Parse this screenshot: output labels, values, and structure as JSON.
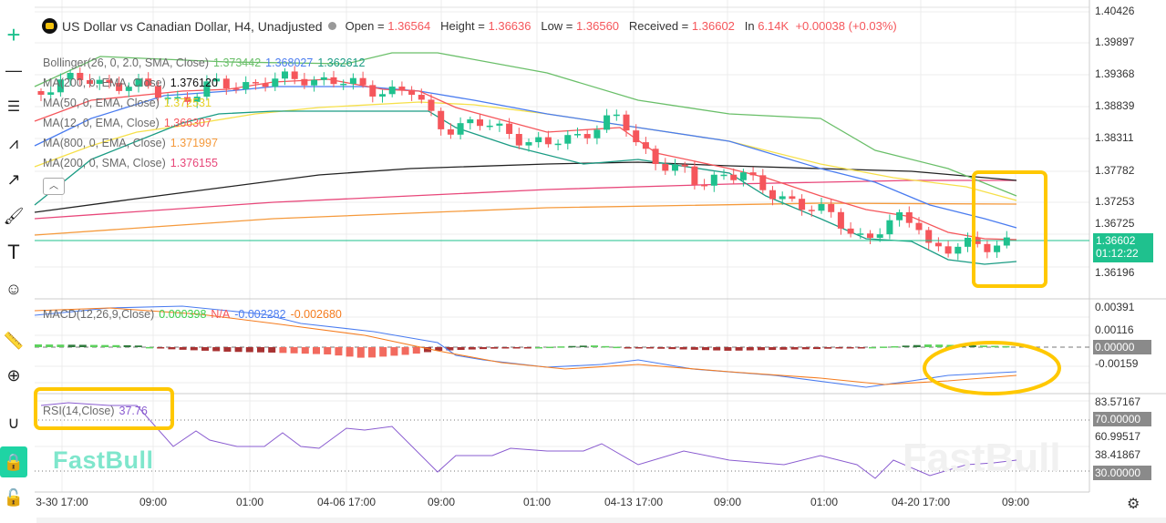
{
  "header": {
    "title": "US Dollar vs Canadian Dollar, H4, Unadjusted",
    "open_label": "Open =",
    "open": "1.36564",
    "high_label": "Height =",
    "high": "1.36636",
    "low_label": "Low =",
    "low": "1.36560",
    "close_label": "Received =",
    "close": "1.36602",
    "volume_label": "In",
    "volume": "6.14K",
    "change": "+0.00038 (+0.03%)"
  },
  "indicators": {
    "bollinger": {
      "label": "Bollinger(26, 0, 2.0, SMA, Close)",
      "upper": "1.373442",
      "middle": "1.368027",
      "lower": "1.362612"
    },
    "ma200ema": {
      "label": "MA(200, 0, EMA, Close)",
      "value": "1.376120"
    },
    "ma50ema": {
      "label": "MA(50, 0, EMA, Close)",
      "value": "1.372531"
    },
    "ma12ema": {
      "label": "MA(12, 0, EMA, Close)",
      "value": "1.366307"
    },
    "ma800ema": {
      "label": "MA(800, 0, EMA, Close)",
      "value": "1.371997"
    },
    "ma200sma": {
      "label": "MA(200, 0, SMA, Close)",
      "value": "1.376155"
    },
    "macd": {
      "label": "MACD(12,26,9,Close)",
      "hist": "0.000398",
      "na": "N/A",
      "macd": "-0.002282",
      "signal": "-0.002680"
    },
    "rsi": {
      "label": "RSI(14,Close)",
      "value": "37.76"
    }
  },
  "price_axis": [
    "1.40426",
    "1.39897",
    "1.39368",
    "1.38839",
    "1.38311",
    "1.37782",
    "1.37253",
    "1.36725",
    "1.36196"
  ],
  "current_price": {
    "price": "1.36602",
    "countdown": "01:12:22"
  },
  "macd_axis": [
    "0.00391",
    "0.00116",
    "-0.00159"
  ],
  "macd_zero_badge": "0.00000",
  "rsi_axis": [
    "83.57167",
    "60.99517",
    "38.41867"
  ],
  "rsi_badges": [
    "70.00000",
    "30.00000"
  ],
  "time_axis": [
    "3-30 17:00",
    "09:00",
    "01:00",
    "04-06 17:00",
    "09:00",
    "01:00",
    "04-13 17:00",
    "09:00",
    "01:00",
    "04-20 17:00",
    "09:00"
  ],
  "watermark": "FastBull",
  "colors": {
    "up": "#1fc18e",
    "down": "#f5565b",
    "bb_upper": "#6abf69",
    "bb_middle": "#4a7cf0",
    "bb_lower": "#1a9c84",
    "ma200ema": "#222222",
    "ma50ema": "#f6e04a",
    "ma12ema": "#f5565b",
    "ma800ema": "#f59a3c",
    "ma200sma": "#e8477a",
    "rsi": "#8a5cd0",
    "highlight": "#ffc800"
  },
  "toolbar": [
    "crosshair-icon",
    "horizontal-line-icon",
    "fib-icon",
    "pattern-icon",
    "trend-icon",
    "brush-icon",
    "text-icon",
    "emoji-icon",
    "ruler-icon",
    "zoom-in-icon",
    "magnet-icon",
    "lock-drawing-icon",
    "unlock-icon"
  ]
}
